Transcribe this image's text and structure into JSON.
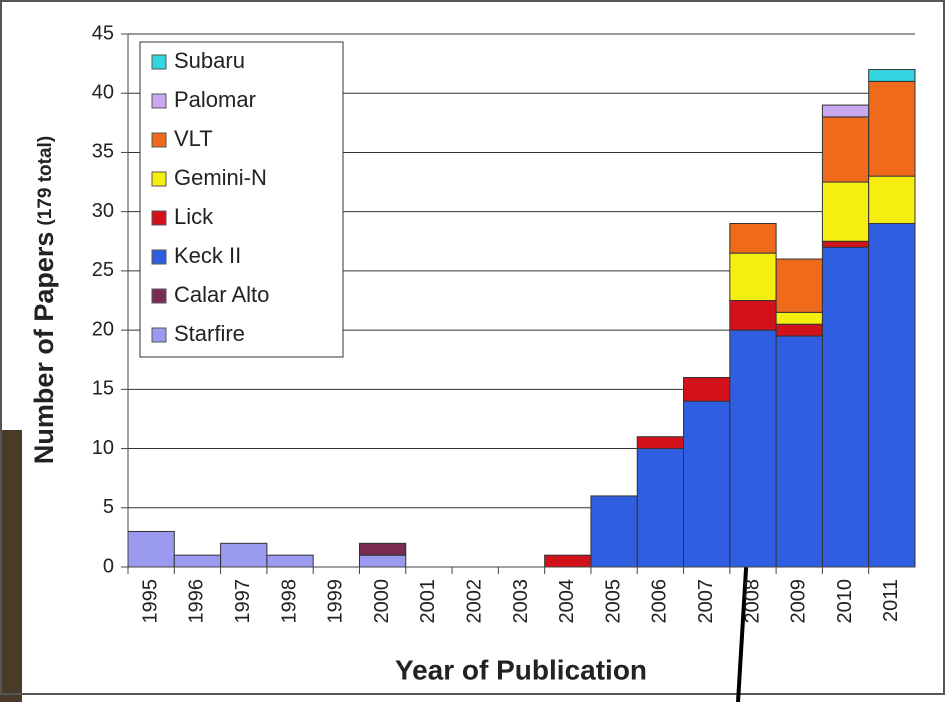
{
  "chart_data": {
    "type": "stacked_bar",
    "y_label": "Number of Papers",
    "y_label_note": "(179 total)",
    "x_label": "Year of Publication",
    "categories": [
      "1995",
      "1996",
      "1997",
      "1998",
      "1999",
      "2000",
      "2001",
      "2002",
      "2003",
      "2004",
      "2005",
      "2006",
      "2007",
      "2008",
      "2009",
      "2010",
      "2011"
    ],
    "series": [
      {
        "name": "Starfire",
        "color": "#9a9af0",
        "values": [
          3,
          1,
          2,
          1,
          0,
          1,
          0,
          0,
          0,
          0,
          0,
          0,
          0,
          0,
          0,
          0,
          0
        ]
      },
      {
        "name": "Calar Alto",
        "color": "#7a2c50",
        "values": [
          0,
          0,
          0,
          0,
          0,
          1,
          0,
          0,
          0,
          0,
          0,
          0,
          0,
          0,
          0,
          0,
          0
        ]
      },
      {
        "name": "Keck II",
        "color": "#2f5fe0",
        "values": [
          0,
          0,
          0,
          0,
          0,
          0,
          0,
          0,
          0,
          0,
          6,
          10,
          14,
          20,
          19.5,
          27,
          29
        ]
      },
      {
        "name": "Lick",
        "color": "#d3111b",
        "values": [
          0,
          0,
          0,
          0,
          0,
          0,
          0,
          0,
          0,
          1,
          0,
          1,
          2,
          2.5,
          1,
          0.5,
          0
        ]
      },
      {
        "name": "Gemini-N",
        "color": "#f6ee10",
        "values": [
          0,
          0,
          0,
          0,
          0,
          0,
          0,
          0,
          0,
          0,
          0,
          0,
          0,
          4,
          1,
          5,
          4
        ]
      },
      {
        "name": "VLT",
        "color": "#f06a1c",
        "values": [
          0,
          0,
          0,
          0,
          0,
          0,
          0,
          0,
          0,
          0,
          0,
          0,
          0,
          2.5,
          4.5,
          5.5,
          8
        ]
      },
      {
        "name": "Palomar",
        "color": "#c8a8ee",
        "values": [
          0,
          0,
          0,
          0,
          0,
          0,
          0,
          0,
          0,
          0,
          0,
          0,
          0,
          0,
          0,
          1,
          0
        ]
      },
      {
        "name": "Subaru",
        "color": "#33d6e0",
        "values": [
          0,
          0,
          0,
          0,
          0,
          0,
          0,
          0,
          0,
          0,
          0,
          0,
          0,
          0,
          0,
          0,
          1
        ]
      }
    ],
    "ylim": [
      0,
      45
    ],
    "yticks": [
      0,
      5,
      10,
      15,
      20,
      25,
      30,
      35,
      40,
      45
    ],
    "grid": true
  }
}
